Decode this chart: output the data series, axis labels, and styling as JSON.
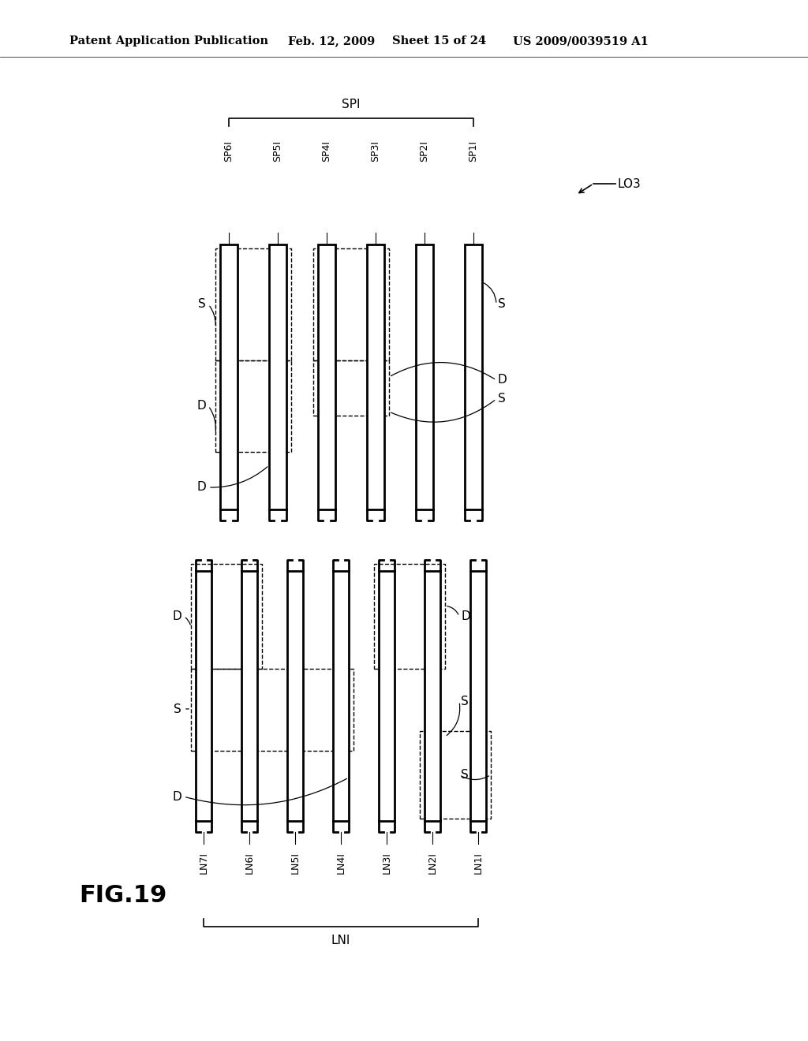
{
  "bg_color": "#ffffff",
  "header_text": "Patent Application Publication",
  "header_date": "Feb. 12, 2009",
  "header_sheet": "Sheet 15 of 24",
  "header_patent": "US 2009/0039519 A1",
  "fig_label": "FIG.19",
  "top_diagram": {
    "label_SPI": "SPI",
    "label_LO3": "LO3",
    "stripe_labels": [
      "SP6I",
      "SP5I",
      "SP4I",
      "SP3I",
      "SP2I",
      "SP1I"
    ]
  },
  "bottom_diagram": {
    "label_LNI": "LNI",
    "stripe_labels": [
      "LN7I",
      "LN6I",
      "LN5I",
      "LN4I",
      "LN3I",
      "LN2I",
      "LN1I"
    ]
  }
}
